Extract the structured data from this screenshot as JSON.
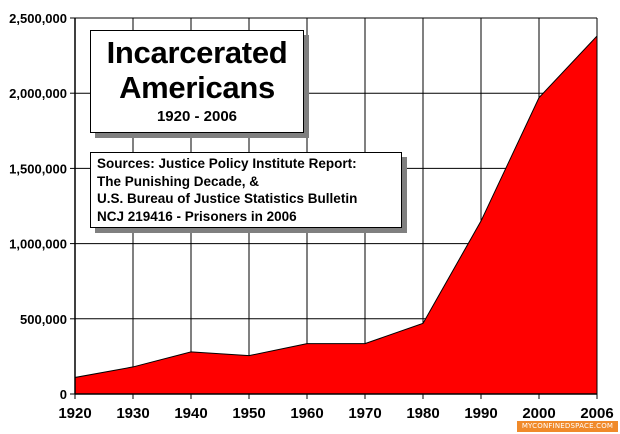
{
  "chart_data": {
    "type": "area",
    "title": "Incarcerated Americans",
    "subtitle": "1920 - 2006",
    "x": [
      1920,
      1930,
      1940,
      1950,
      1960,
      1970,
      1980,
      1990,
      2000,
      2006
    ],
    "series": [
      {
        "values": [
          110000,
          180000,
          280000,
          255000,
          335000,
          335000,
          470000,
          1150000,
          1970000,
          2380000
        ]
      }
    ],
    "x_ticks": [
      "1920",
      "1930",
      "1940",
      "1950",
      "1960",
      "1970",
      "1980",
      "1990",
      "2000",
      "2006"
    ],
    "y_ticks": [
      "0",
      "500,000",
      "1,000,000",
      "1,500,000",
      "2,000,000",
      "2,500,000"
    ],
    "ylim": [
      0,
      2500000
    ],
    "grid": true,
    "fill_color": "#ff0000",
    "sources": [
      "Sources: Justice Policy Institute Report:",
      "The Punishing Decade, &",
      "U.S. Bureau of Justice Statistics Bulletin",
      "NCJ 219416 - Prisoners in 2006"
    ]
  },
  "watermark": "MYCONFINEDSPACE.COM"
}
